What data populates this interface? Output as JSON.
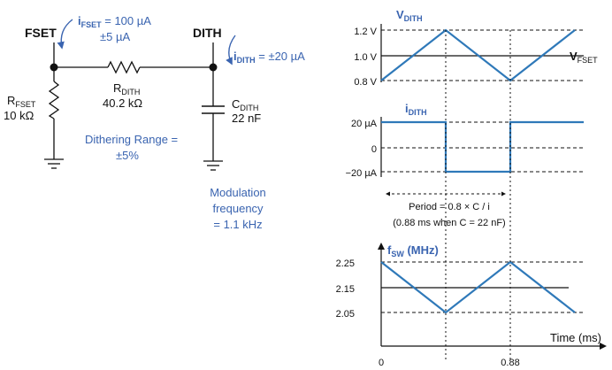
{
  "colors": {
    "accent": "#3a64b0",
    "waveform": "#2f79b9",
    "line": "#111111"
  },
  "circuit": {
    "fset_label": "FSET",
    "dith_label": "DITH",
    "ifset_sym": "i",
    "ifset_sub": "FSET",
    "ifset_val": " = 100 µA",
    "ifset_tol": "±5 µA",
    "idith_sym": "i",
    "idith_sub": "DITH",
    "idith_val": " = ±20 µA",
    "rfset_sym": "R",
    "rfset_sub": "FSET",
    "rfset_val": "10 kΩ",
    "rdith_sym": "R",
    "rdith_sub": "DITH",
    "rdith_val": "40.2 kΩ",
    "cdith_sym": "C",
    "cdith_sub": "DITH",
    "cdith_val": "22 nF",
    "dither_range_1": "Dithering Range =",
    "dither_range_2": "±5%",
    "mod_freq_1": "Modulation",
    "mod_freq_2": "frequency",
    "mod_freq_3": "= 1.1 kHz"
  },
  "plot_vdith": {
    "title_sym": "V",
    "title_sub": "DITH",
    "ticks": [
      "1.2 V",
      "1.0 V",
      "0.8 V"
    ],
    "ref_sym": "V",
    "ref_sub": "FSET"
  },
  "plot_idith": {
    "title_sym": "i",
    "title_sub": "DITH",
    "ticks": [
      "20 µA",
      "0",
      "−20 µA"
    ]
  },
  "period": {
    "line1": "Period = 0.8 × C / i",
    "line2": "(0.88 ms when C = 22 nF)"
  },
  "plot_fsw": {
    "title_sym": "f",
    "title_sub": "SW",
    "title_unit": " (MHz)",
    "ticks": [
      "2.25",
      "2.15",
      "2.05"
    ],
    "x_axis_label": "Time (ms)",
    "x_ticks": [
      "0",
      "0.88"
    ]
  }
}
